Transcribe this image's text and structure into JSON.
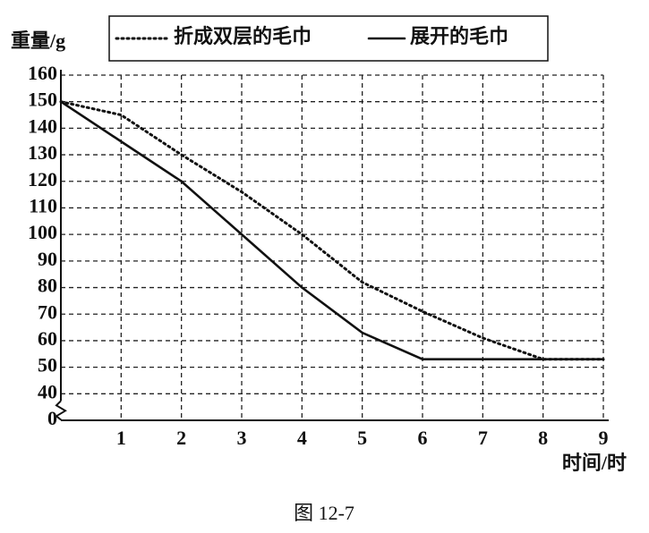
{
  "chart_data": {
    "type": "line",
    "y_label": "重量/g",
    "x_label": "时间/时",
    "caption": "图 12-7",
    "x": [
      0,
      1,
      2,
      3,
      4,
      5,
      6,
      7,
      8,
      9
    ],
    "xlim": [
      0,
      9
    ],
    "xticks": [
      1,
      2,
      3,
      4,
      5,
      6,
      7,
      8,
      9
    ],
    "ylim": [
      0,
      160
    ],
    "yticks": [
      0,
      40,
      50,
      60,
      70,
      80,
      90,
      100,
      110,
      120,
      130,
      140,
      150,
      160
    ],
    "axis_break": [
      0,
      40
    ],
    "grid": true,
    "series": [
      {
        "name": "折成双层的毛巾",
        "color": "#111111",
        "style": "dotted",
        "values": [
          150,
          145,
          130,
          116,
          100,
          82,
          71,
          61,
          53,
          53
        ]
      },
      {
        "name": "展开的毛巾",
        "color": "#111111",
        "style": "solid",
        "values": [
          150,
          135,
          120,
          100,
          80,
          63,
          53,
          53,
          53,
          53
        ]
      }
    ]
  }
}
